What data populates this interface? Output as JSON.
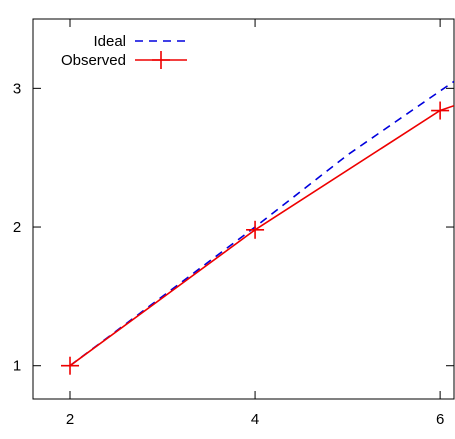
{
  "chart_data": {
    "type": "line",
    "x": [
      2,
      4,
      6
    ],
    "xticks": [
      2,
      4,
      6
    ],
    "yticks": [
      1,
      2,
      3
    ],
    "xlim": [
      1.6,
      6.15
    ],
    "ylim": [
      0.76,
      3.5
    ],
    "grid": false,
    "legend_position": "top-left",
    "series": [
      {
        "name": "Ideal",
        "x": [
          2,
          3,
          4,
          5,
          6.15
        ],
        "y": [
          1.0,
          1.5,
          2.0,
          2.52,
          3.05
        ],
        "color": "#0000dd",
        "style": "dashed",
        "marker": "none"
      },
      {
        "name": "Observed",
        "x": [
          2,
          4,
          6,
          6.15
        ],
        "y": [
          1.0,
          1.98,
          2.84,
          2.875
        ],
        "marker_points": [
          [
            2,
            1.0
          ],
          [
            4,
            1.98
          ],
          [
            6,
            2.84
          ]
        ],
        "color": "#ee0000",
        "style": "solid",
        "marker": "plus"
      }
    ]
  }
}
